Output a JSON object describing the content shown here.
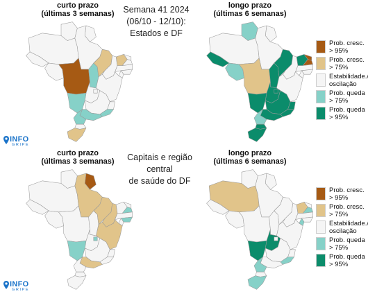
{
  "colors": {
    "inc95": "#a65a14",
    "inc75": "#e1c48a",
    "stable": "#f5f5f5",
    "dec75": "#86d1c8",
    "dec95": "#0b8c6b",
    "border": "#9a9a9a",
    "logo": "#1a73c9"
  },
  "top": {
    "center_title": [
      "Semana 41 2024",
      "(06/10 - 12/10):",
      "Estados e DF"
    ],
    "left": {
      "title": [
        "curto prazo",
        "(últimas 3 semanas)"
      ]
    },
    "right": {
      "title": [
        "longo prazo",
        "(últimas 6 semanas)"
      ]
    },
    "legend": [
      {
        "label": [
          "Prob. cresc.",
          "> 95%"
        ],
        "color": "inc95"
      },
      {
        "label": [
          "Prob. cresc.",
          "> 75%"
        ],
        "color": "inc75"
      },
      {
        "label": [
          "Estabilidade./",
          "oscilação"
        ],
        "color": "stable"
      },
      {
        "label": [
          "Prob. queda",
          "> 75%"
        ],
        "color": "dec75"
      },
      {
        "label": [
          "Prob. queda",
          "> 95%"
        ],
        "color": "dec95"
      }
    ]
  },
  "bottom": {
    "center_title": [
      "Capitais e região central",
      "de saúde do DF"
    ],
    "left": {
      "title": [
        "curto prazo",
        "(últimas 3 semanas)"
      ]
    },
    "right": {
      "title": [
        "longo prazo",
        "(últimas 6 semanas)"
      ]
    },
    "legend": [
      {
        "label": [
          "Prob. cresc.",
          "> 95%"
        ],
        "color": "inc95"
      },
      {
        "label": [
          "Prob. cresc.",
          "> 75%"
        ],
        "color": "inc75"
      },
      {
        "label": [
          "Estabilidade./",
          "oscilação"
        ],
        "color": "stable"
      },
      {
        "label": [
          "Prob. queda",
          "> 75%"
        ],
        "color": "dec75"
      },
      {
        "label": [
          "Prob. queda",
          "> 95%"
        ],
        "color": "dec95"
      }
    ]
  },
  "logo": {
    "main": "INFO",
    "sub": "GRIPE"
  },
  "maps": {
    "top_left": {
      "RR": "stable",
      "AP": "stable",
      "AM": "stable",
      "PA": "stable",
      "AC": "stable",
      "RO": "stable",
      "MT": "inc95",
      "TO": "dec75",
      "MA": "inc75",
      "PI": "stable",
      "CE": "inc75",
      "RN": "stable",
      "PB": "stable",
      "PE": "stable",
      "AL": "stable",
      "SE": "stable",
      "BA": "stable",
      "GO": "stable",
      "DF": "stable",
      "MS": "dec75",
      "MG": "stable",
      "ES": "stable",
      "RJ": "dec75",
      "SP": "dec75",
      "PR": "dec75",
      "SC": "stable",
      "RS": "inc75"
    },
    "top_right": {
      "RR": "dec75",
      "AP": "stable",
      "AM": "stable",
      "PA": "stable",
      "AC": "dec95",
      "RO": "dec75",
      "MT": "inc75",
      "TO": "dec95",
      "MA": "dec95",
      "PI": "stable",
      "CE": "dec95",
      "RN": "inc95",
      "PB": "inc95",
      "PE": "stable",
      "AL": "stable",
      "SE": "stable",
      "BA": "stable",
      "GO": "dec95",
      "DF": "dec95",
      "MS": "dec95",
      "MG": "dec95",
      "ES": "dec95",
      "RJ": "dec95",
      "SP": "dec95",
      "PR": "dec75",
      "SC": "dec95",
      "RS": "dec95"
    },
    "bottom_left": {
      "RR": "stable",
      "AP": "inc95",
      "AM": "stable",
      "PA": "inc75",
      "AC": "stable",
      "RO": "stable",
      "MT": "stable",
      "TO": "stable",
      "MA": "inc75",
      "PI": "inc75",
      "CE": "stable",
      "RN": "stable",
      "PB": "dec75",
      "PE": "stable",
      "AL": "dec75",
      "SE": "stable",
      "BA": "inc75",
      "GO": "stable",
      "DF": "dec75",
      "MS": "dec75",
      "MG": "stable",
      "ES": "stable",
      "RJ": "stable",
      "SP": "inc75",
      "PR": "stable",
      "SC": "stable",
      "RS": "stable"
    },
    "bottom_right": {
      "RR": "stable",
      "AP": "stable",
      "AM": "inc75",
      "PA": "stable",
      "AC": "stable",
      "RO": "stable",
      "MT": "stable",
      "TO": "stable",
      "MA": "stable",
      "PI": "stable",
      "CE": "inc75",
      "RN": "stable",
      "PB": "dec75",
      "PE": "stable",
      "AL": "stable",
      "SE": "dec75",
      "BA": "stable",
      "GO": "dec95",
      "DF": "stable",
      "MS": "dec95",
      "MG": "stable",
      "ES": "stable",
      "RJ": "dec75",
      "SP": "stable",
      "PR": "dec75",
      "SC": "stable",
      "RS": "dec75"
    }
  }
}
